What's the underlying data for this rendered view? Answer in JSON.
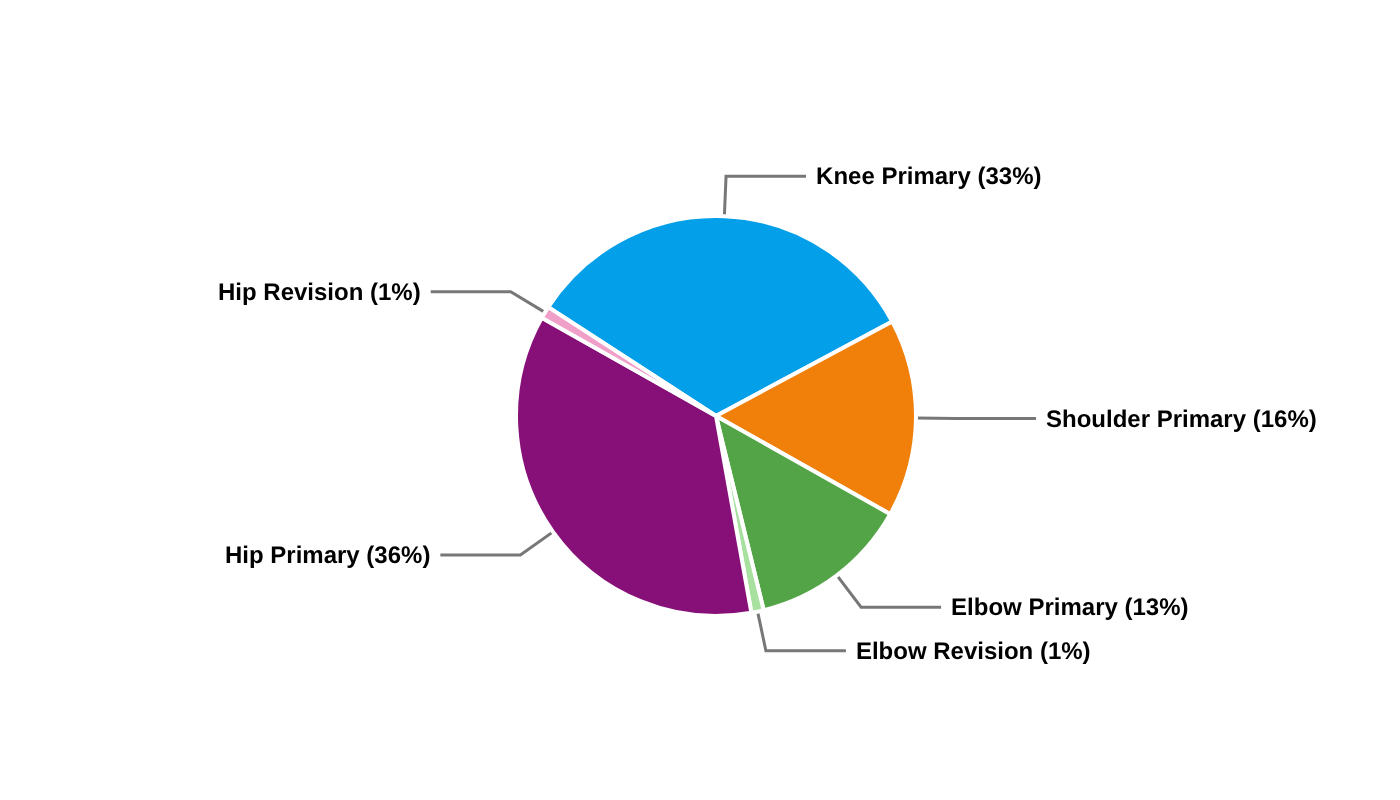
{
  "chart_data": {
    "type": "pie",
    "categories": [
      "Knee Primary",
      "Shoulder Primary",
      "Elbow Primary",
      "Elbow Revision",
      "Hip Primary",
      "Hip Revision"
    ],
    "values": [
      33,
      16,
      13,
      1,
      36,
      1
    ],
    "value_labels": [
      "(33%)",
      "(16%)",
      "(13%)",
      "(1%)",
      "(36%)",
      "(1%)"
    ],
    "colors": [
      "#039fe9",
      "#f0800a",
      "#53a447",
      "#a8e0a0",
      "#861078",
      "#f0a0c8"
    ],
    "legend": false
  }
}
